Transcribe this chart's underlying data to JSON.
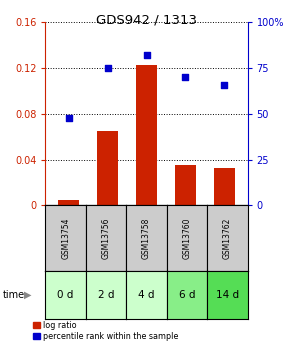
{
  "title": "GDS942 / 1313",
  "categories": [
    "GSM13754",
    "GSM13756",
    "GSM13758",
    "GSM13760",
    "GSM13762"
  ],
  "time_labels": [
    "0 d",
    "2 d",
    "4 d",
    "6 d",
    "14 d"
  ],
  "log_ratio": [
    0.005,
    0.065,
    0.123,
    0.035,
    0.033
  ],
  "percentile_rank": [
    48,
    75,
    82,
    70,
    66
  ],
  "bar_color": "#cc2200",
  "scatter_color": "#0000cc",
  "ylim_left": [
    0,
    0.16
  ],
  "ylim_right": [
    0,
    100
  ],
  "yticks_left": [
    0,
    0.04,
    0.08,
    0.12,
    0.16
  ],
  "ytick_labels_left": [
    "0",
    "0.04",
    "0.08",
    "0.12",
    "0.16"
  ],
  "yticks_right": [
    0,
    25,
    50,
    75,
    100
  ],
  "ytick_labels_right": [
    "0",
    "25",
    "50",
    "75",
    "100%"
  ],
  "gsm_bg_color": "#cccccc",
  "time_bg_colors": [
    "#ccffcc",
    "#ccffcc",
    "#ccffcc",
    "#88ee88",
    "#55dd55"
  ],
  "legend_log_ratio": "log ratio",
  "legend_percentile": "percentile rank within the sample",
  "bar_width": 0.55,
  "fig_width": 2.93,
  "fig_height": 3.45,
  "dpi": 100
}
